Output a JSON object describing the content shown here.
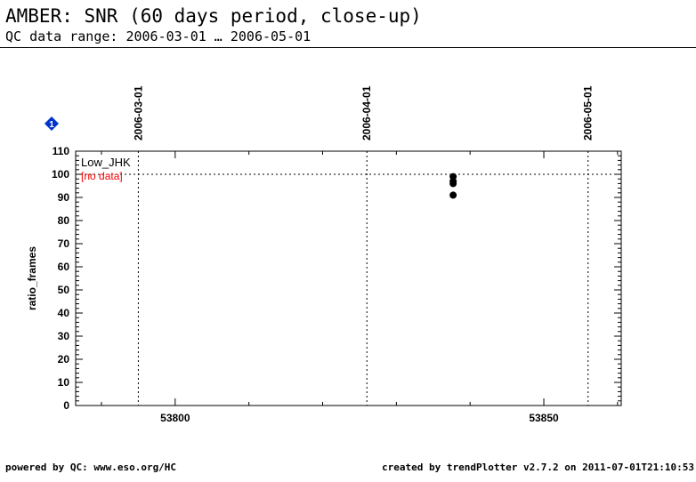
{
  "header": {
    "title": "AMBER: SNR (60 days period, close-up)",
    "subtitle": "QC data range: 2006-03-01 … 2006-05-01"
  },
  "footer": {
    "left": "powered by QC: www.eso.org/HC",
    "right": "created by trendPlotter v2.7.2 on 2011-07-01T21:10:53"
  },
  "badge": {
    "label": "1",
    "color": "#0033cc"
  },
  "chart_data": {
    "type": "scatter",
    "title": "",
    "xlabel": "",
    "ylabel": "ratio_frames",
    "xlim": [
      53786.5,
      53860.5
    ],
    "ylim": [
      0,
      110
    ],
    "x_ticks": [
      53800,
      53850
    ],
    "y_ticks": [
      0,
      10,
      20,
      30,
      40,
      50,
      60,
      70,
      80,
      90,
      100,
      110
    ],
    "grid": false,
    "reference_line_y": 100,
    "date_markers": [
      {
        "x": 53795,
        "label": "2006-03-01"
      },
      {
        "x": 53826,
        "label": "2006-04-01"
      },
      {
        "x": 53856,
        "label": "2006-05-01"
      }
    ],
    "legend": {
      "label": "Low_JHK",
      "note": "[no data]",
      "note_color": "#ff0000",
      "position": "top-left"
    },
    "series": [
      {
        "name": "Low_JHK",
        "color": "#000000",
        "points": [
          {
            "x": 53837.7,
            "y": 99
          },
          {
            "x": 53837.7,
            "y": 97
          },
          {
            "x": 53837.7,
            "y": 96
          },
          {
            "x": 53837.7,
            "y": 91
          }
        ]
      }
    ]
  }
}
